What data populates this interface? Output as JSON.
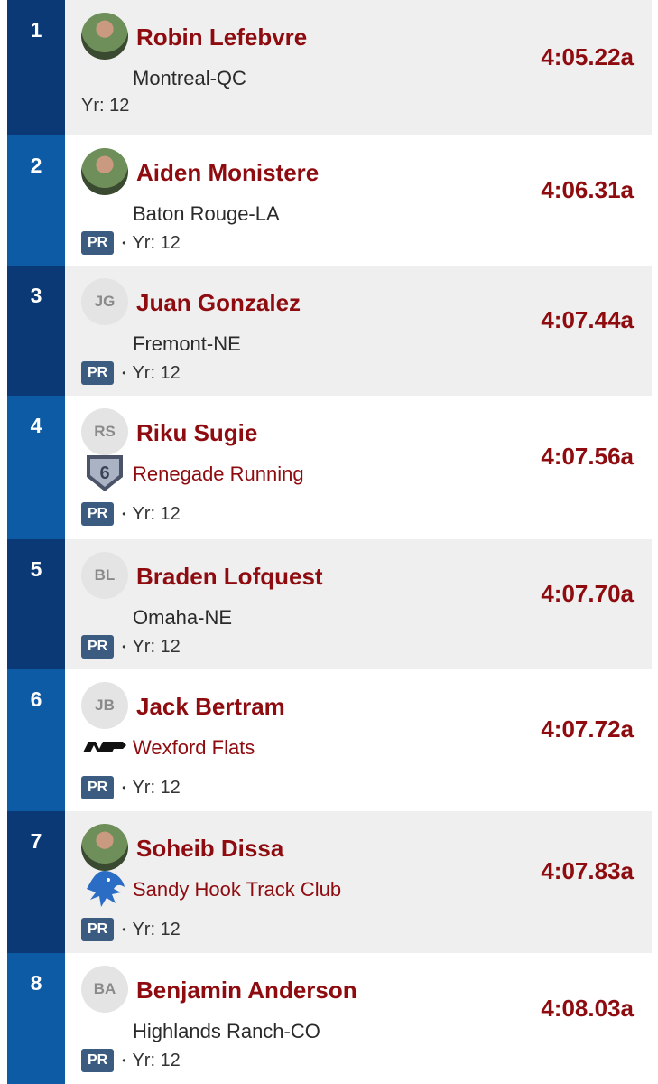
{
  "rows": [
    {
      "rank": "1",
      "name": "Robin Lefebvre",
      "location": "Montreal-QC",
      "year": "Yr: 12",
      "time": "4:05.22a"
    },
    {
      "rank": "2",
      "name": "Aiden Monistere",
      "location": "Baton Rouge-LA",
      "badge": "PR",
      "sep": "•",
      "year": "Yr: 12",
      "time": "4:06.31a"
    },
    {
      "rank": "3",
      "name": "Juan Gonzalez",
      "initials": "JG",
      "location": "Fremont-NE",
      "badge": "PR",
      "sep": "•",
      "year": "Yr: 12",
      "time": "4:07.44a"
    },
    {
      "rank": "4",
      "name": "Riku Sugie",
      "initials": "RS",
      "team": "Renegade Running",
      "badge": "PR",
      "sep": "•",
      "year": "Yr: 12",
      "time": "4:07.56a"
    },
    {
      "rank": "5",
      "name": "Braden Lofquest",
      "initials": "BL",
      "location": "Omaha-NE",
      "badge": "PR",
      "sep": "•",
      "year": "Yr: 12",
      "time": "4:07.70a"
    },
    {
      "rank": "6",
      "name": "Jack Bertram",
      "initials": "JB",
      "team": "Wexford Flats",
      "badge": "PR",
      "sep": "•",
      "year": "Yr: 12",
      "time": "4:07.72a"
    },
    {
      "rank": "7",
      "name": "Soheib Dissa",
      "team": "Sandy Hook Track Club",
      "badge": "PR",
      "sep": "•",
      "year": "Yr: 12",
      "time": "4:07.83a"
    },
    {
      "rank": "8",
      "name": "Benjamin Anderson",
      "initials": "BA",
      "location": "Highlands Ranch-CO",
      "badge": "PR",
      "sep": "•",
      "year": "Yr: 12",
      "time": "4:08.03a"
    }
  ]
}
